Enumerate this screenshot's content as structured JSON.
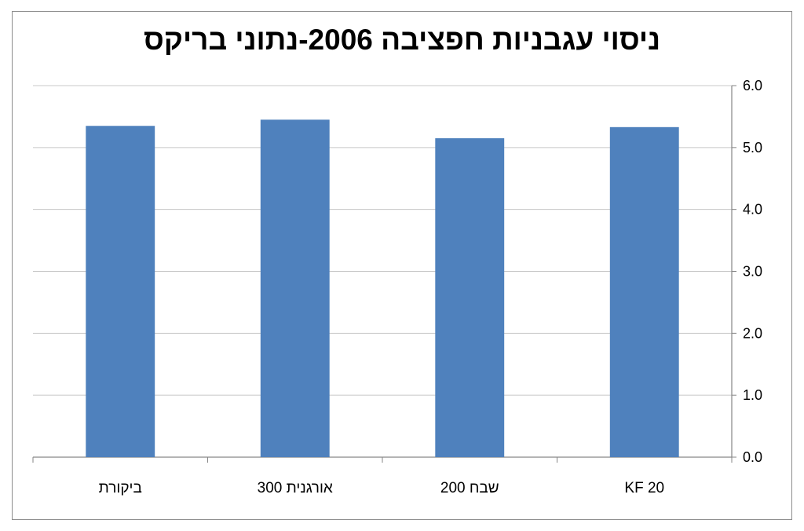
{
  "chart_data": {
    "type": "bar",
    "title": "ניסוי עגבניות חפציבה 2006-נתוני בריקס",
    "categories": [
      "ביקורת",
      "אורגנית 300",
      "שבח 200",
      "KF 20"
    ],
    "values": [
      5.35,
      5.45,
      5.15,
      5.33
    ],
    "ylim": [
      0,
      6
    ],
    "yticks": [
      "0.0",
      "1.0",
      "2.0",
      "3.0",
      "4.0",
      "5.0",
      "6.0"
    ],
    "y_axis_side": "right",
    "grid": true,
    "legend": "none",
    "bar_color": "#4f81bd",
    "xlabel": "",
    "ylabel": ""
  }
}
